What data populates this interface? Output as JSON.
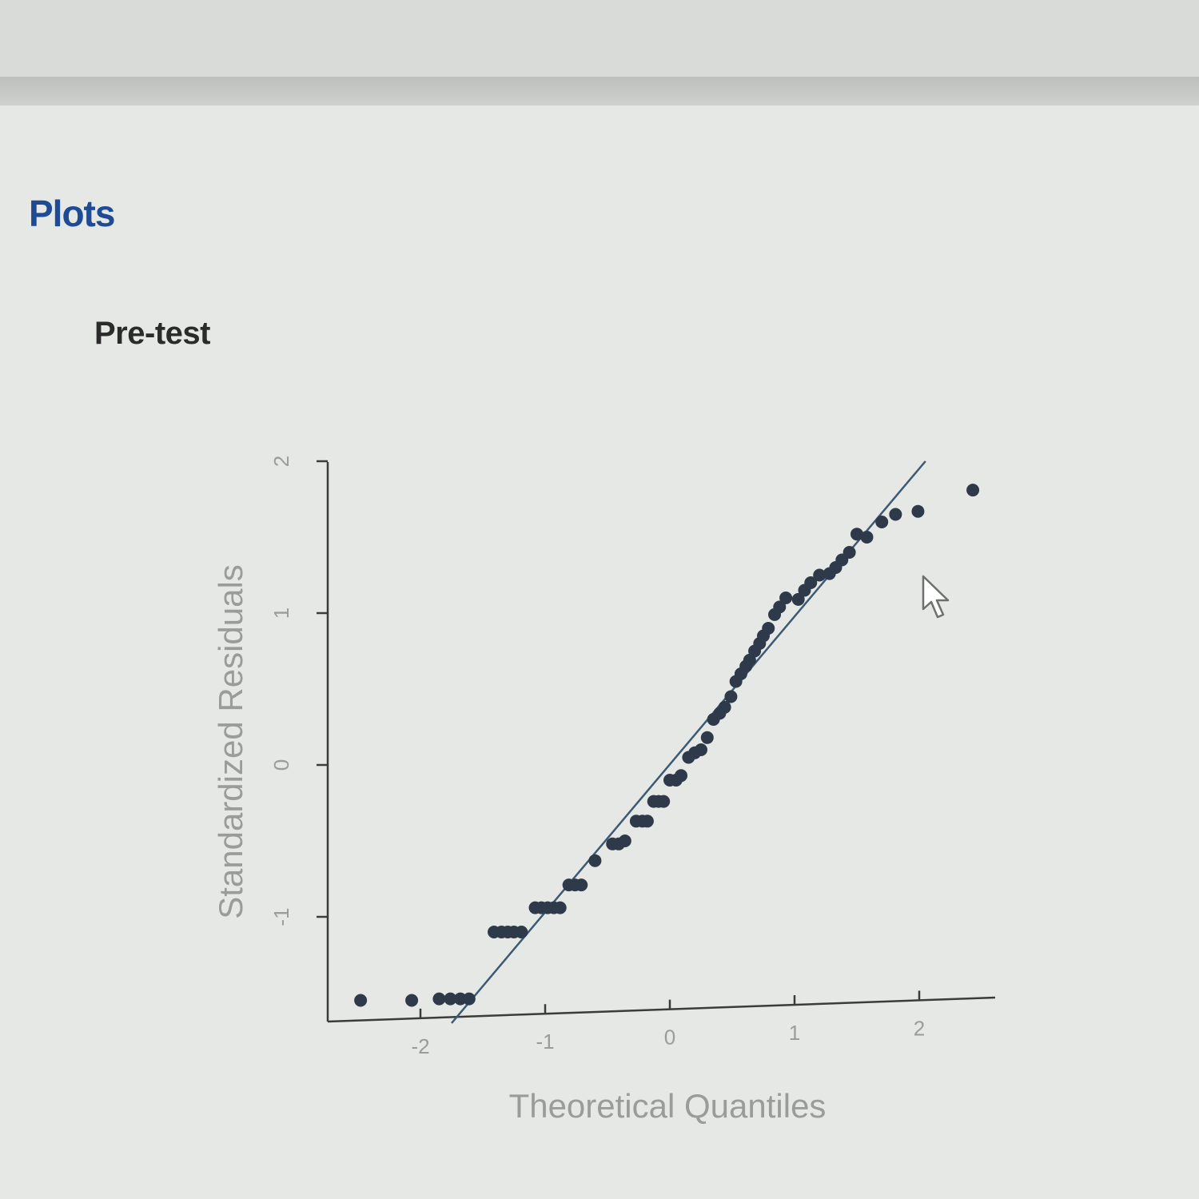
{
  "header": {
    "section_title": "Plots",
    "sub_title": "Pre-test"
  },
  "chart_data": {
    "type": "scatter",
    "title": "",
    "xlabel": "Theoretical Quantiles",
    "ylabel": "Standardized Residuals",
    "xlim": [
      -2.7,
      2.6
    ],
    "ylim": [
      -1.7,
      2.0
    ],
    "xticks": [
      -2,
      -1,
      0,
      1,
      2
    ],
    "yticks": [
      -1,
      0,
      1,
      2
    ],
    "xtick_labels": [
      "-2",
      "-1",
      "0",
      "1",
      "2"
    ],
    "ytick_labels": [
      "-1",
      "0",
      "1",
      "2"
    ],
    "reference_line": {
      "x": [
        -1.75,
        2.05
      ],
      "y": [
        -1.7,
        2.0
      ]
    },
    "series": [
      {
        "x": [
          -2.48,
          -2.07,
          -1.85,
          -1.76,
          -1.68,
          -1.61,
          -1.41,
          -1.35,
          -1.3,
          -1.25,
          -1.19,
          -1.08,
          -1.03,
          -0.98,
          -0.93,
          -0.88,
          -0.81,
          -0.76,
          -0.71,
          -0.6,
          -0.46,
          -0.41,
          -0.36,
          -0.27,
          -0.22,
          -0.18,
          -0.13,
          -0.09,
          -0.05,
          0.0,
          0.05,
          0.09,
          0.15,
          0.2,
          0.25,
          0.3,
          0.35,
          0.4,
          0.44,
          0.49,
          0.53,
          0.57,
          0.61,
          0.64,
          0.68,
          0.72,
          0.75,
          0.79,
          0.84,
          0.88,
          0.93,
          1.03,
          1.08,
          1.13,
          1.2,
          1.28,
          1.33,
          1.38,
          1.44,
          1.5,
          1.58,
          1.7,
          1.81,
          1.99,
          2.43
        ],
        "y": [
          -1.55,
          -1.55,
          -1.54,
          -1.54,
          -1.54,
          -1.54,
          -1.1,
          -1.1,
          -1.1,
          -1.1,
          -1.1,
          -0.94,
          -0.94,
          -0.94,
          -0.94,
          -0.94,
          -0.79,
          -0.79,
          -0.79,
          -0.63,
          -0.52,
          -0.52,
          -0.5,
          -0.37,
          -0.37,
          -0.37,
          -0.24,
          -0.24,
          -0.24,
          -0.1,
          -0.1,
          -0.07,
          0.05,
          0.08,
          0.1,
          0.18,
          0.3,
          0.34,
          0.38,
          0.45,
          0.55,
          0.6,
          0.65,
          0.69,
          0.75,
          0.8,
          0.85,
          0.9,
          0.99,
          1.04,
          1.1,
          1.09,
          1.15,
          1.2,
          1.25,
          1.26,
          1.3,
          1.35,
          1.4,
          1.52,
          1.5,
          1.6,
          1.65,
          1.67,
          1.81
        ]
      }
    ]
  }
}
